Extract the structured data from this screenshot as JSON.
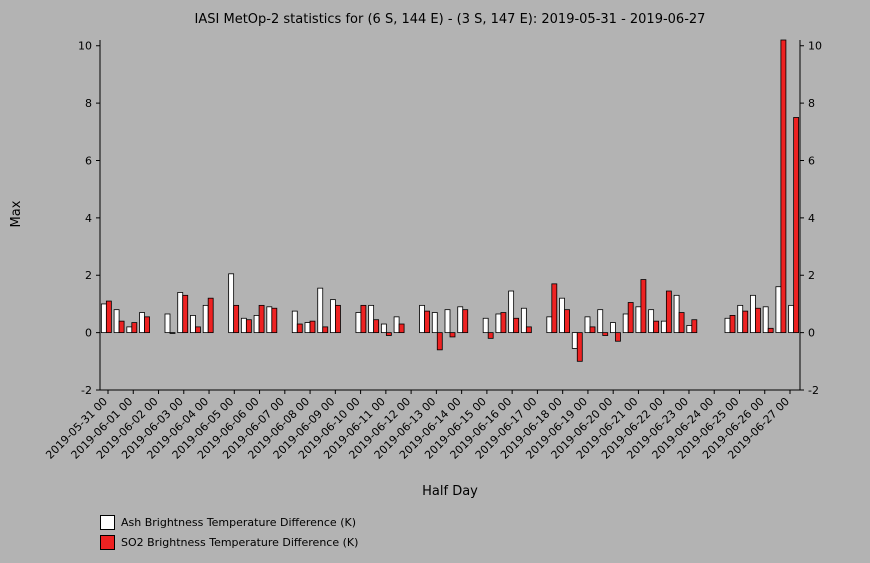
{
  "chart_data": {
    "type": "bar",
    "title": "IASI MetOp-2 statistics for (6 S, 144 E) - (3 S, 147 E): 2019-05-31 - 2019-06-27",
    "xlabel": "Half Day",
    "ylabel": "Max",
    "ylim": [
      -2,
      10.2
    ],
    "yticks": [
      -2,
      0,
      2,
      4,
      6,
      8,
      10
    ],
    "x_tick_labels": [
      "2019-05-31 00",
      "2019-06-01 00",
      "2019-06-02 00",
      "2019-06-03 00",
      "2019-06-04 00",
      "2019-06-05 00",
      "2019-06-06 00",
      "2019-06-07 00",
      "2019-06-08 00",
      "2019-06-09 00",
      "2019-06-10 00",
      "2019-06-11 00",
      "2019-06-12 00",
      "2019-06-13 00",
      "2019-06-14 00",
      "2019-06-15 00",
      "2019-06-16 00",
      "2019-06-17 00",
      "2019-06-18 00",
      "2019-06-19 00",
      "2019-06-20 00",
      "2019-06-21 00",
      "2019-06-22 00",
      "2019-06-23 00",
      "2019-06-24 00",
      "2019-06-25 00",
      "2019-06-26 00",
      "2019-06-27 00"
    ],
    "categories_count": 55,
    "series": [
      {
        "name": "Ash Brightness Temperature Difference (K)",
        "color": "#ffffff",
        "values": [
          1.0,
          0.8,
          0.2,
          0.7,
          null,
          0.65,
          1.4,
          0.6,
          0.95,
          null,
          2.05,
          0.5,
          0.6,
          0.9,
          null,
          0.75,
          0.35,
          1.55,
          1.15,
          null,
          0.7,
          0.95,
          0.3,
          0.55,
          null,
          0.95,
          0.7,
          0.8,
          0.9,
          null,
          0.5,
          0.65,
          1.45,
          0.85,
          null,
          0.55,
          1.2,
          -0.55,
          0.55,
          0.8,
          0.35,
          0.65,
          0.9,
          0.8,
          0.4,
          1.3,
          0.25,
          null,
          null,
          0.5,
          0.95,
          1.3,
          0.9,
          1.6,
          0.95
        ]
      },
      {
        "name": "SO2 Brightness Temperature Difference (K)",
        "color": "#ee2222",
        "values": [
          1.1,
          0.4,
          0.35,
          0.55,
          null,
          0.0,
          1.3,
          0.2,
          1.2,
          null,
          0.95,
          0.45,
          0.95,
          0.85,
          null,
          0.3,
          0.4,
          0.2,
          0.95,
          null,
          0.95,
          0.45,
          -0.1,
          0.3,
          null,
          0.75,
          -0.6,
          -0.15,
          0.8,
          null,
          -0.2,
          0.7,
          0.5,
          0.2,
          null,
          1.7,
          0.8,
          -1.0,
          0.2,
          -0.1,
          -0.3,
          1.05,
          1.85,
          0.4,
          1.45,
          0.7,
          0.45,
          null,
          null,
          0.6,
          0.75,
          0.85,
          0.15,
          10.2,
          7.5
        ]
      }
    ]
  }
}
